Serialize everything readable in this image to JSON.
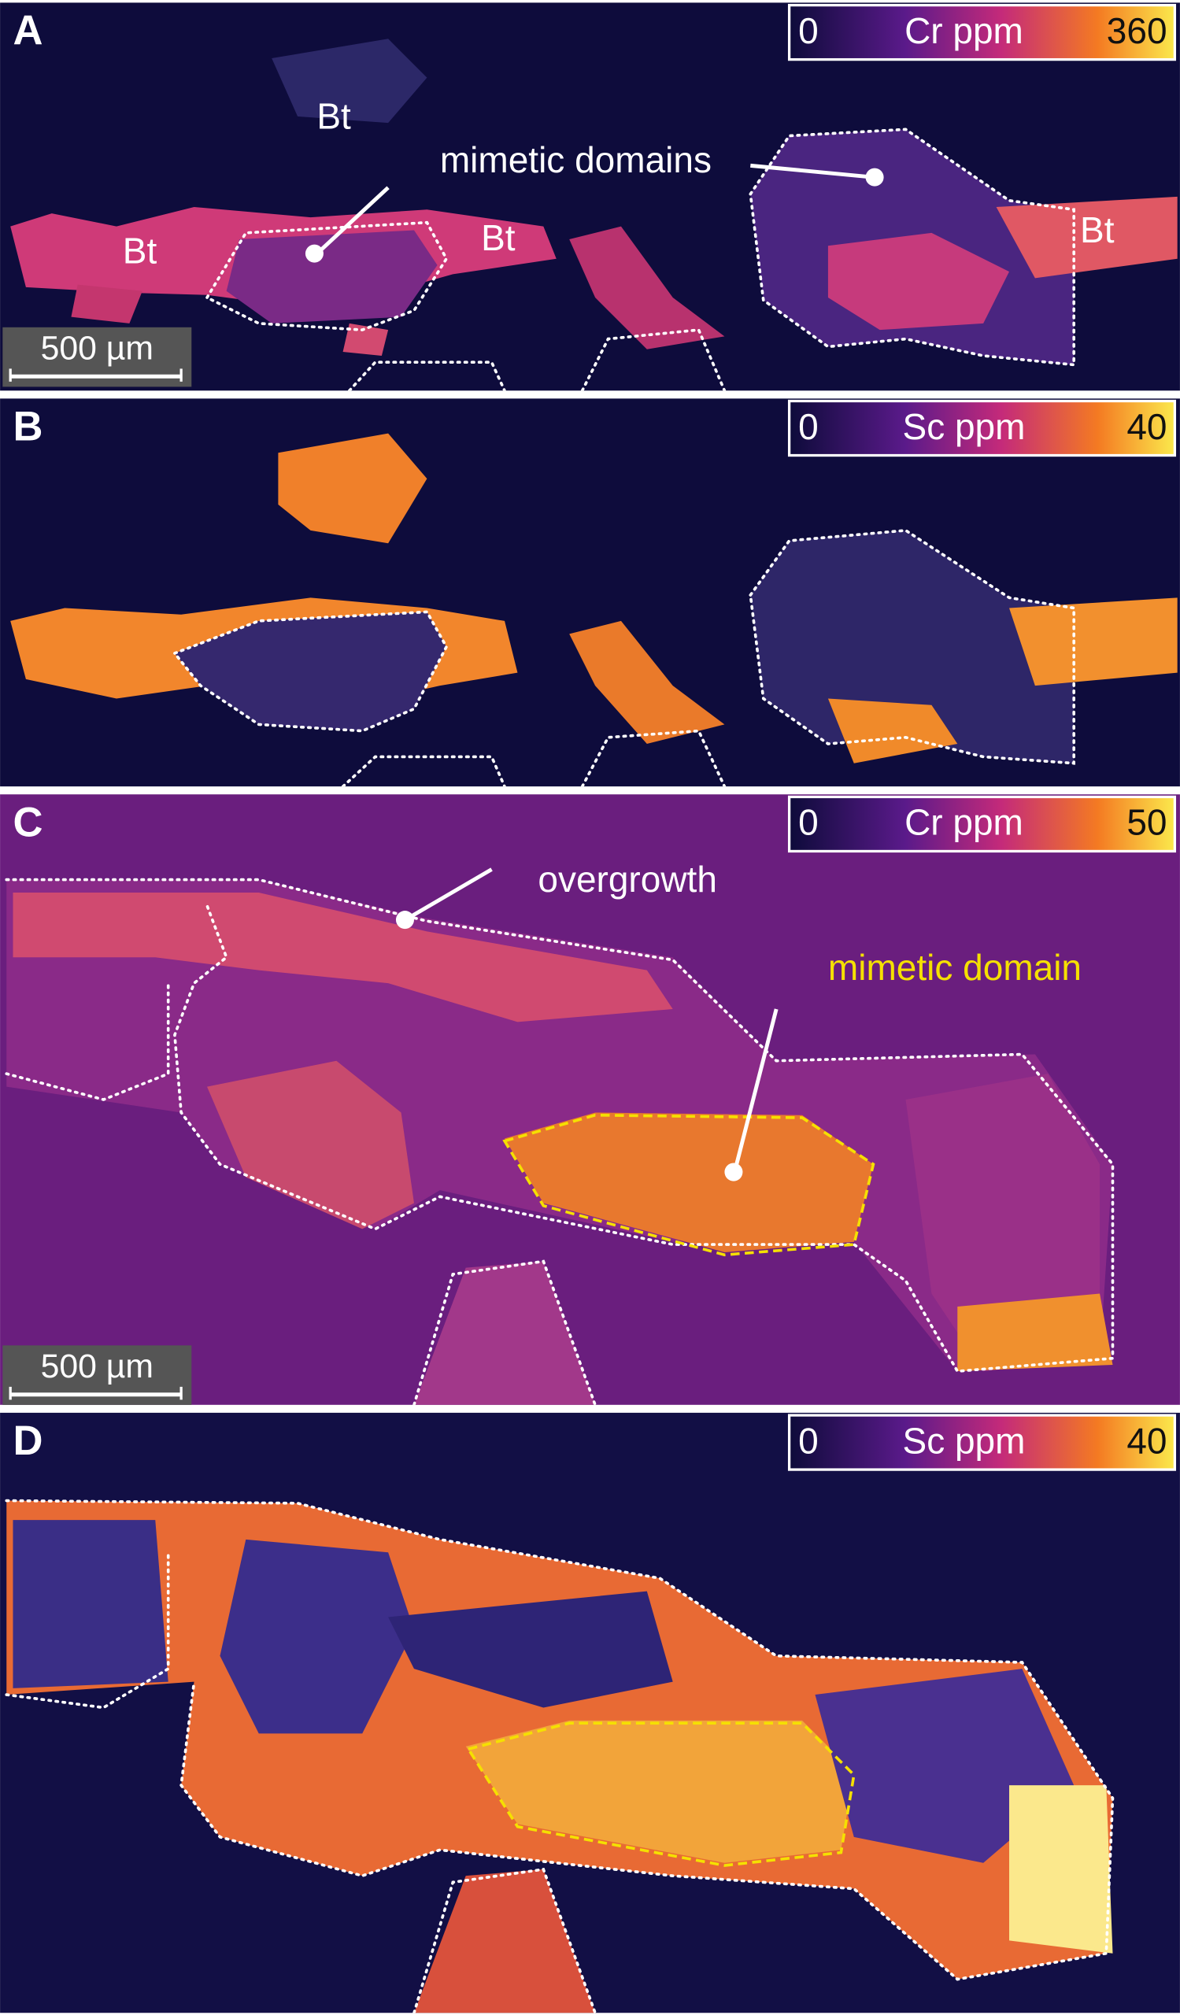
{
  "panels": [
    {
      "label": "A",
      "colorbar": {
        "min": 0,
        "element": "Cr ppm",
        "max": 360
      },
      "annotations": [
        {
          "text": "Bt",
          "color": "#ffffff"
        },
        {
          "text": "mimetic domains",
          "color": "#ffffff"
        },
        {
          "text": "Bt",
          "color": "#ffffff"
        },
        {
          "text": "Bt",
          "color": "#ffffff"
        },
        {
          "text": "Bt",
          "color": "#ffffff"
        }
      ],
      "scale_bar": "500 µm"
    },
    {
      "label": "B",
      "colorbar": {
        "min": 0,
        "element": "Sc ppm",
        "max": 40
      }
    },
    {
      "label": "C",
      "colorbar": {
        "min": 0,
        "element": "Cr ppm",
        "max": 50
      },
      "annotations": [
        {
          "text": "overgrowth",
          "color": "#ffffff"
        },
        {
          "text": "mimetic domain",
          "color": "#f5e000"
        }
      ],
      "scale_bar": "500 µm"
    },
    {
      "label": "D",
      "colorbar": {
        "min": 0,
        "element": "Sc ppm",
        "max": 40
      }
    }
  ]
}
